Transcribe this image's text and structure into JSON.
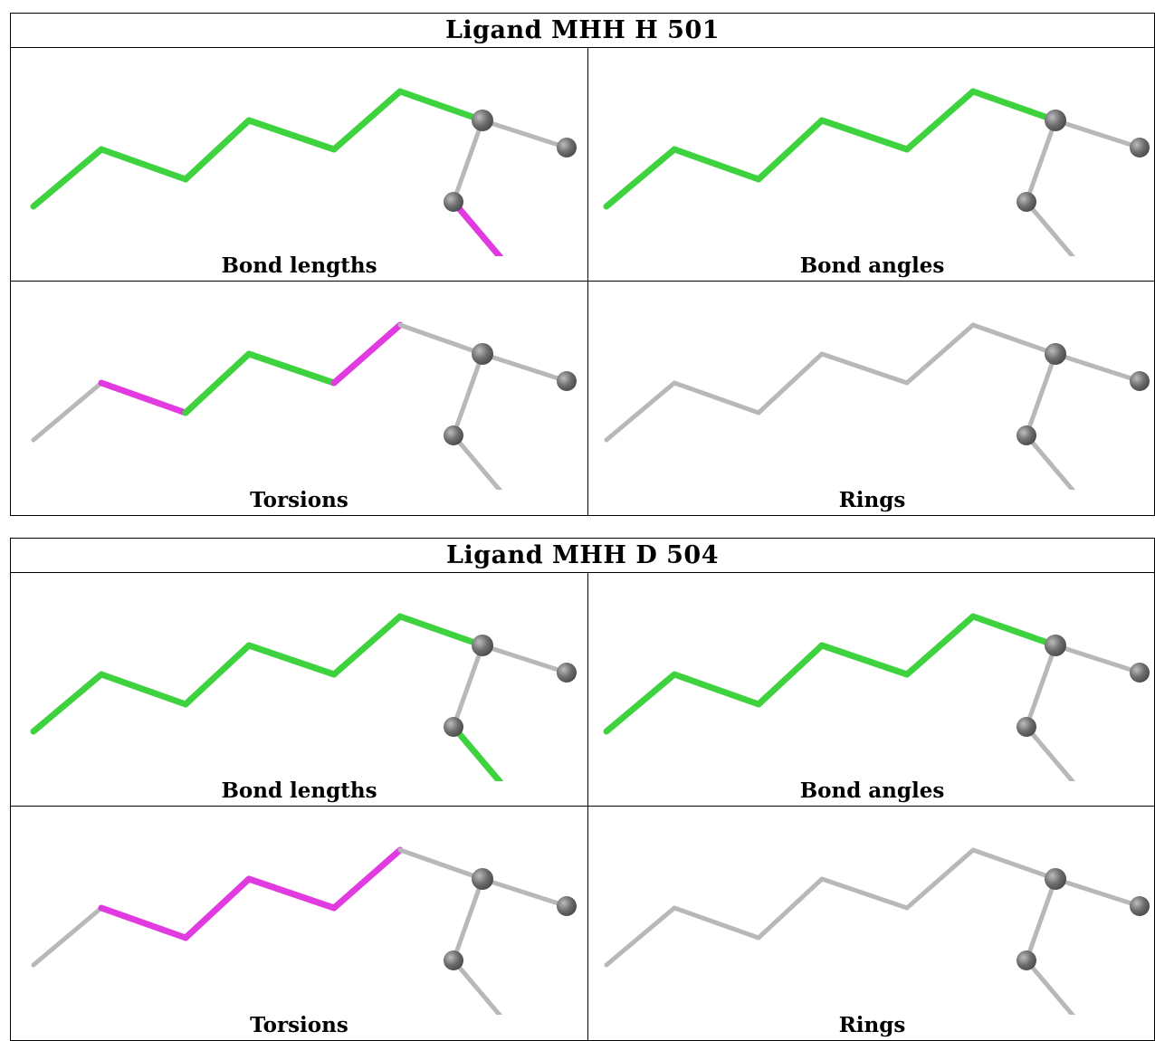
{
  "colors": {
    "ok": "#3ed23e",
    "outlier": "#e03ae0",
    "neutral": "#b8b8b8",
    "atom": "#6e6e6e"
  },
  "ligands": [
    {
      "title": "Ligand MHH H 501",
      "panels": [
        {
          "caption": "Bond lengths",
          "chain": [
            "ok",
            "ok",
            "ok",
            "ok",
            "ok",
            "ok",
            "neutral"
          ],
          "ester": "outlier"
        },
        {
          "caption": "Bond angles",
          "chain": [
            "ok",
            "ok",
            "ok",
            "ok",
            "ok",
            "ok",
            "ok"
          ],
          "ester": "neutral"
        },
        {
          "caption": "Torsions",
          "chain": [
            "neutral",
            "outlier",
            "ok",
            "ok",
            "outlier",
            "neutral",
            "neutral"
          ],
          "ester": "neutral"
        },
        {
          "caption": "Rings",
          "chain": [
            "neutral",
            "neutral",
            "neutral",
            "neutral",
            "neutral",
            "neutral",
            "neutral"
          ],
          "ester": "neutral"
        }
      ]
    },
    {
      "title": "Ligand MHH D 504",
      "panels": [
        {
          "caption": "Bond lengths",
          "chain": [
            "ok",
            "ok",
            "ok",
            "ok",
            "ok",
            "ok",
            "neutral"
          ],
          "ester": "ok"
        },
        {
          "caption": "Bond angles",
          "chain": [
            "ok",
            "ok",
            "ok",
            "ok",
            "ok",
            "ok",
            "ok"
          ],
          "ester": "neutral"
        },
        {
          "caption": "Torsions",
          "chain": [
            "neutral",
            "outlier",
            "outlier",
            "outlier",
            "outlier",
            "neutral",
            "neutral"
          ],
          "ester": "neutral"
        },
        {
          "caption": "Rings",
          "chain": [
            "neutral",
            "neutral",
            "neutral",
            "neutral",
            "neutral",
            "neutral",
            "neutral"
          ],
          "ester": "neutral"
        }
      ]
    }
  ]
}
